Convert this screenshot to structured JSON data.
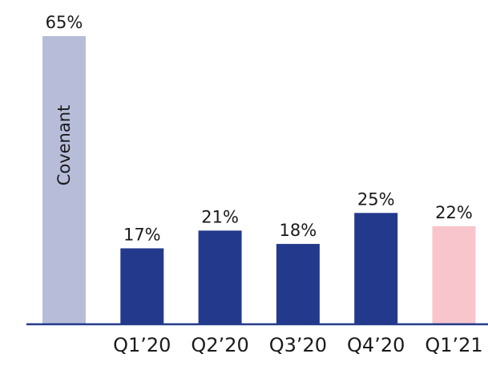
{
  "chart_data": {
    "type": "bar",
    "categories": [
      "",
      "Q1’20",
      "Q2’20",
      "Q3’20",
      "Q4’20",
      "Q1’21"
    ],
    "values": [
      65,
      17,
      21,
      18,
      25,
      22
    ],
    "value_labels": [
      "65%",
      "17%",
      "21%",
      "18%",
      "25%",
      "22%"
    ],
    "bar_inner_labels": [
      "Covenant",
      "",
      "",
      "",
      "",
      ""
    ],
    "bar_colors": [
      "#b7bdd9",
      "#233a8c",
      "#233a8c",
      "#233a8c",
      "#233a8c",
      "#f7c5cb"
    ],
    "ylim": [
      0,
      65
    ],
    "title": "",
    "xlabel": "",
    "ylabel": "",
    "grid": false,
    "axis_color": "#233a8c"
  }
}
